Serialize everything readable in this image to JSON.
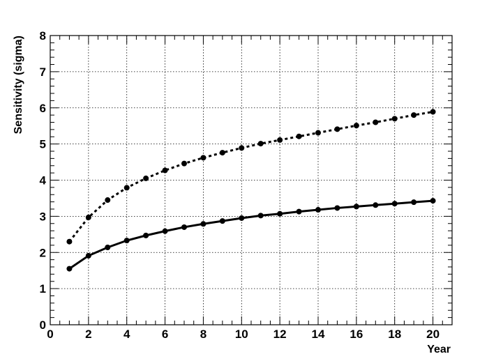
{
  "chart_data": {
    "type": "line",
    "title": "",
    "xlabel": "Year",
    "ylabel": "Sensitivity (sigma)",
    "xlim": [
      0,
      21
    ],
    "ylim": [
      0,
      8
    ],
    "xticks": [
      0,
      2,
      4,
      6,
      8,
      10,
      12,
      14,
      16,
      18,
      20
    ],
    "yticks": [
      0,
      1,
      2,
      3,
      4,
      5,
      6,
      7,
      8
    ],
    "grid": true,
    "series": [
      {
        "style": "dotted",
        "color": "#000000",
        "x": [
          1,
          2,
          3,
          4,
          5,
          6,
          7,
          8,
          9,
          10,
          11,
          12,
          13,
          14,
          15,
          16,
          17,
          18,
          19,
          20
        ],
        "y": [
          2.3,
          2.97,
          3.45,
          3.79,
          4.05,
          4.27,
          4.46,
          4.62,
          4.76,
          4.89,
          5.01,
          5.11,
          5.21,
          5.31,
          5.41,
          5.51,
          5.6,
          5.7,
          5.8,
          5.89
        ]
      },
      {
        "style": "solid",
        "color": "#000000",
        "x": [
          1,
          2,
          3,
          4,
          5,
          6,
          7,
          8,
          9,
          10,
          11,
          12,
          13,
          14,
          15,
          16,
          17,
          18,
          19,
          20
        ],
        "y": [
          1.55,
          1.91,
          2.14,
          2.33,
          2.47,
          2.59,
          2.7,
          2.79,
          2.87,
          2.95,
          3.02,
          3.07,
          3.13,
          3.18,
          3.23,
          3.27,
          3.31,
          3.35,
          3.39,
          3.43
        ]
      }
    ]
  }
}
